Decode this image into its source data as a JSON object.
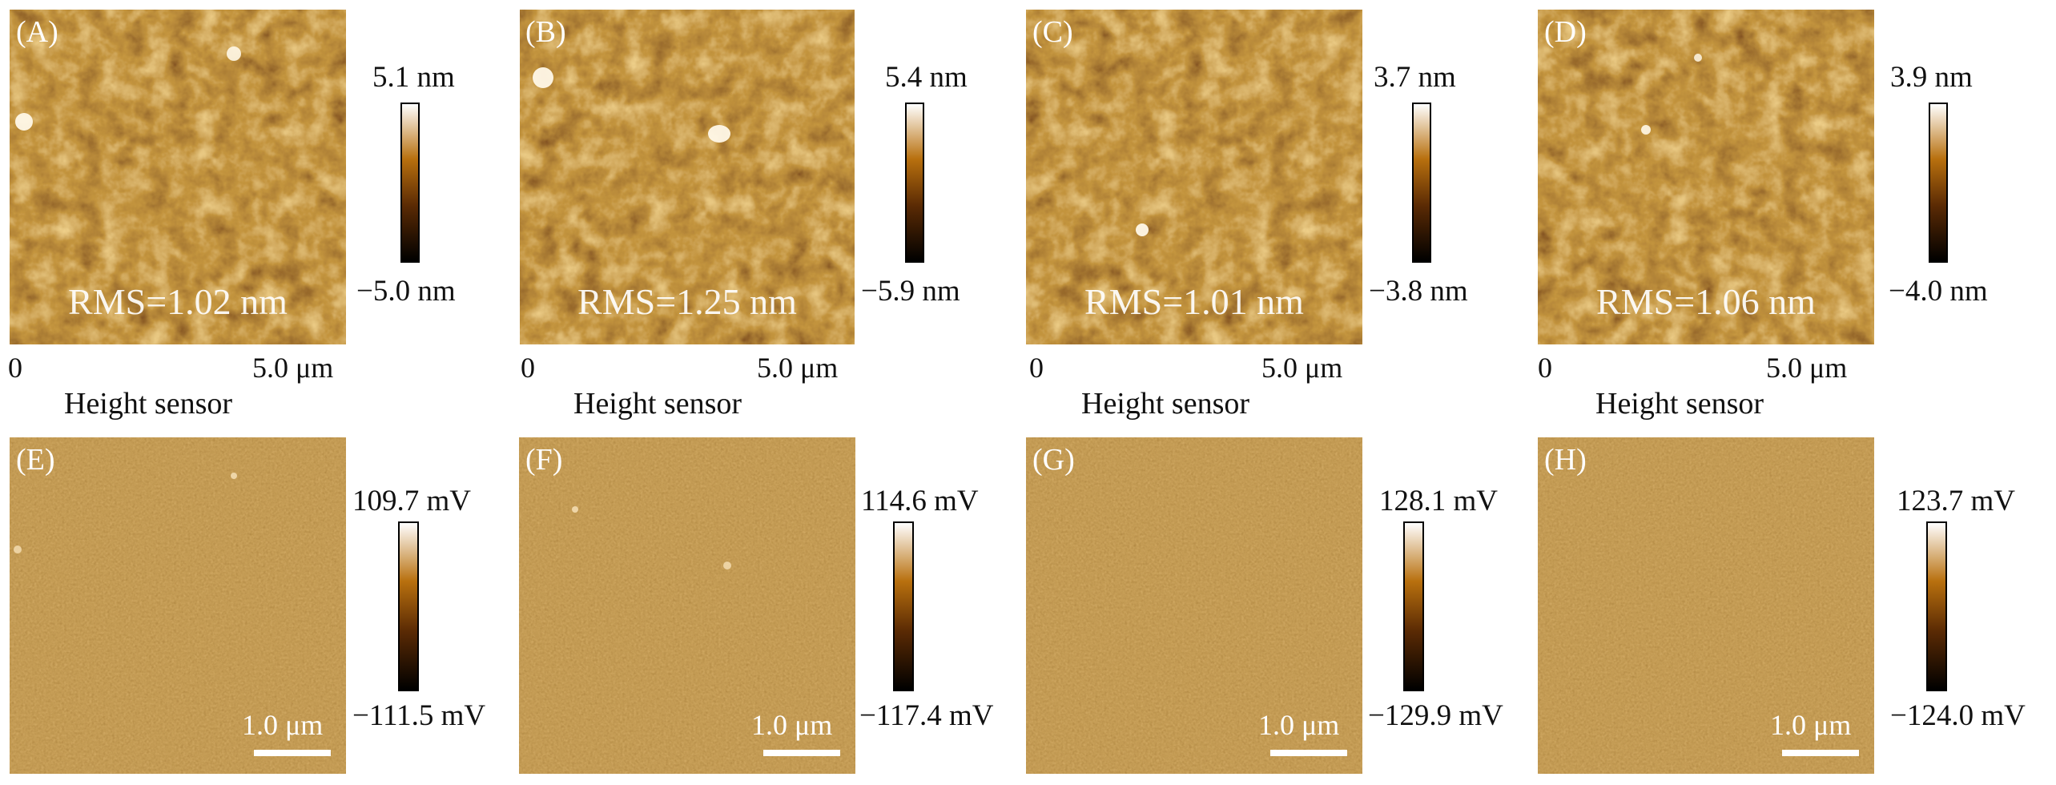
{
  "height_panels": [
    {
      "letter": "(A)",
      "rms": "RMS=1.02 nm",
      "max": "5.1 nm",
      "min": "−5.0 nm",
      "axis_start": "0",
      "axis_end": "5.0 μm",
      "sensor": "Height sensor"
    },
    {
      "letter": "(B)",
      "rms": "RMS=1.25 nm",
      "max": "5.4 nm",
      "min": "−5.9 nm",
      "axis_start": "0",
      "axis_end": "5.0 μm",
      "sensor": "Height sensor"
    },
    {
      "letter": "(C)",
      "rms": "RMS=1.01 nm",
      "max": "3.7 nm",
      "min": "−3.8 nm",
      "axis_start": "0",
      "axis_end": "5.0 μm",
      "sensor": "Height sensor"
    },
    {
      "letter": "(D)",
      "rms": "RMS=1.06 nm",
      "max": "3.9 nm",
      "min": "−4.0 nm",
      "axis_start": "0",
      "axis_end": "5.0 μm",
      "sensor": "Height sensor"
    }
  ],
  "phase_panels": [
    {
      "letter": "(E)",
      "max": "109.7 mV",
      "min": "−111.5 mV",
      "scale": "1.0 μm"
    },
    {
      "letter": "(F)",
      "max": "114.6 mV",
      "min": "−117.4 mV",
      "scale": "1.0 μm"
    },
    {
      "letter": "(G)",
      "max": "128.1 mV",
      "min": "−129.9 mV",
      "scale": "1.0 μm"
    },
    {
      "letter": "(H)",
      "max": "123.7 mV",
      "min": "−124.0 mV",
      "scale": "1.0 μm"
    }
  ],
  "colors": {
    "afm_dark": "#1a0800",
    "afm_mid": "#8a4a08",
    "afm_light": "#f4e6b8",
    "phase_base": "#8a5418"
  }
}
